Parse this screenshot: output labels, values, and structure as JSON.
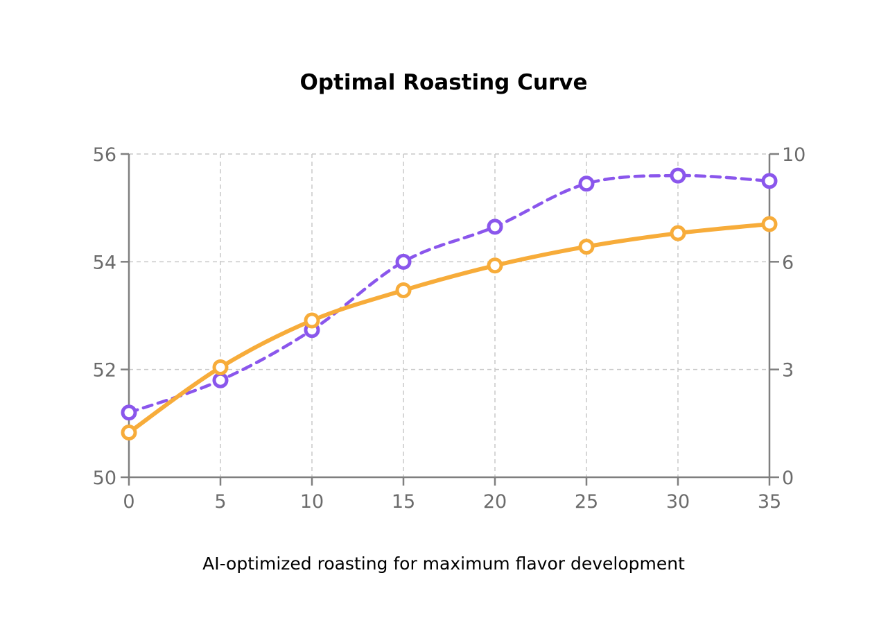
{
  "chart_data": {
    "type": "line",
    "title": "Optimal Roasting Curve",
    "subtitle": "AI-optimized roasting for maximum flavor development",
    "x": [
      0,
      5,
      10,
      15,
      20,
      25,
      30,
      35
    ],
    "xlim": [
      0,
      35
    ],
    "x_ticks": [
      "0",
      "5",
      "10",
      "15",
      "20",
      "25",
      "30",
      "35"
    ],
    "y_left": {
      "ticks": [
        50,
        52,
        54,
        56
      ],
      "tick_labels": [
        "50",
        "52",
        "54",
        "56"
      ],
      "lim": [
        50,
        56
      ]
    },
    "y_right": {
      "ticks": [
        0,
        3,
        6,
        10
      ],
      "tick_labels": [
        "0",
        "3",
        "6",
        "10"
      ],
      "tick_positions_on_left_scale": [
        50,
        52,
        54,
        56
      ]
    },
    "series": [
      {
        "axis": "left",
        "color": "#f7ac3a",
        "style": "solid",
        "values": [
          50.83,
          52.04,
          52.91,
          53.47,
          53.93,
          54.28,
          54.53,
          54.7
        ]
      },
      {
        "axis": "right",
        "color": "#8a56ec",
        "style": "dashed",
        "values": [
          1.8,
          2.7,
          4.1,
          6.0,
          7.3,
          8.9,
          9.2,
          9.0
        ]
      }
    ],
    "grid": true,
    "legend": "none"
  }
}
